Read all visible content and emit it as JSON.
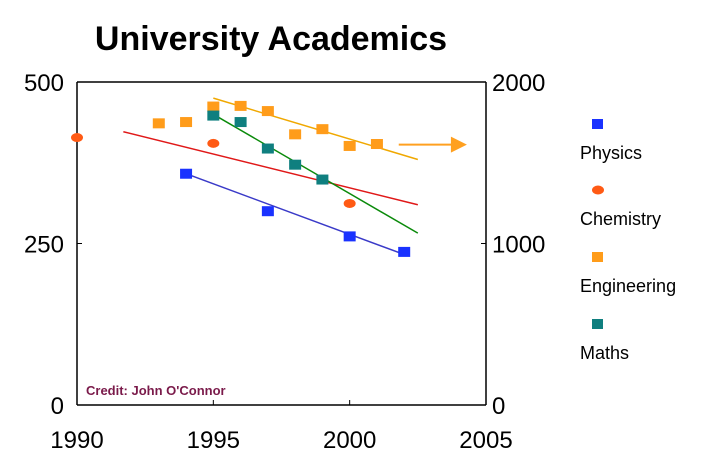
{
  "chart_data": {
    "type": "scatter",
    "title": "University Academics",
    "xlim": [
      1990,
      2005
    ],
    "x_ticks": [
      "1990",
      "1995",
      "2000",
      "2005"
    ],
    "ylim": [
      0,
      500
    ],
    "y_ticks": [
      "0",
      "250",
      "500"
    ],
    "y2lim": [
      0,
      2000
    ],
    "y2_ticks": [
      "0",
      "1000",
      "2000"
    ],
    "grid": false,
    "legend_position": "right",
    "credit": "Credit: John O'Connor",
    "series": [
      {
        "name": "Physics",
        "color": "#1a32ff",
        "marker": "square",
        "points": [
          [
            1994,
            358
          ],
          [
            1997,
            300
          ],
          [
            2000,
            261
          ],
          [
            2002,
            237
          ]
        ],
        "trend": [
          [
            1994,
            358
          ],
          [
            2002,
            233
          ]
        ]
      },
      {
        "name": "Chemistry",
        "color": "#ff5a14",
        "marker": "circle",
        "points": [
          [
            1990,
            414
          ],
          [
            1995,
            405
          ],
          [
            2000,
            312
          ]
        ],
        "trend": [
          [
            1991.7,
            423
          ],
          [
            2002.5,
            310
          ]
        ]
      },
      {
        "name": "Engineering",
        "color": "#ff9c1a",
        "marker": "square",
        "points": [
          [
            1993,
            436
          ],
          [
            1994,
            438
          ],
          [
            1995,
            462
          ],
          [
            1996,
            463
          ],
          [
            1997,
            455
          ],
          [
            1998,
            419
          ],
          [
            1999,
            427
          ],
          [
            2000,
            401
          ],
          [
            2001,
            404
          ]
        ],
        "trend": [
          [
            1995,
            475
          ],
          [
            2002.5,
            380
          ]
        ],
        "trend_color": "#f0a800"
      },
      {
        "name": "Maths",
        "color": "#0f7f7f",
        "marker": "square",
        "points": [
          [
            1995,
            448
          ],
          [
            1996,
            438
          ],
          [
            1997,
            397
          ],
          [
            1998,
            372
          ],
          [
            1999,
            349
          ]
        ],
        "trend": [
          [
            1995,
            450
          ],
          [
            2002.5,
            266
          ]
        ],
        "trend_color": "#0a8a0a"
      }
    ],
    "annotations": [
      {
        "type": "arrow",
        "color": "#ffa020",
        "from": [
          2001.8,
          403
        ],
        "to": [
          2004.3,
          403
        ]
      }
    ]
  }
}
